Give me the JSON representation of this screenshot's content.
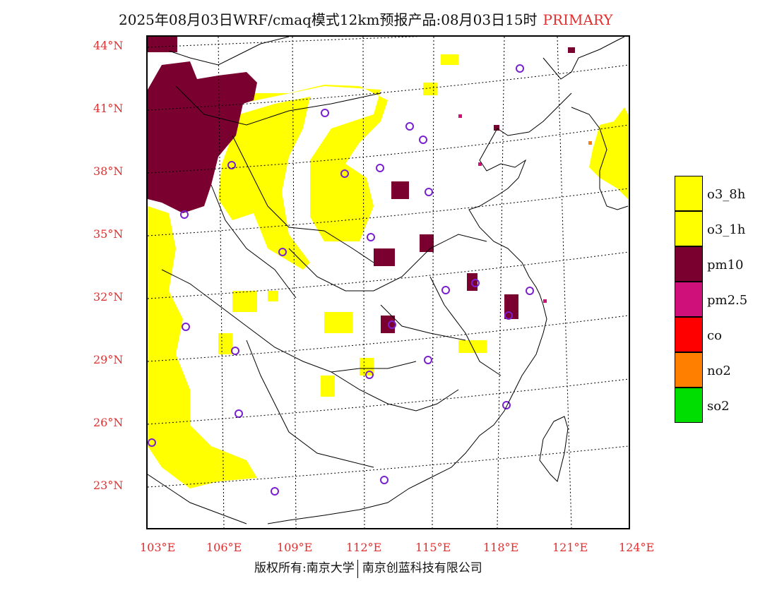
{
  "title": {
    "text": "2025年08月03日WRF/cmaq模式12km预报产品:08月03日15时",
    "tag": "PRIMARY"
  },
  "axes": {
    "lat_labels": [
      "44°N",
      "41°N",
      "38°N",
      "35°N",
      "32°N",
      "29°N",
      "26°N",
      "23°N"
    ],
    "lon_labels": [
      "103°E",
      "106°E",
      "109°E",
      "112°E",
      "115°E",
      "118°E",
      "121°E",
      "124°E"
    ]
  },
  "legend": [
    {
      "label": "o3_8h",
      "color": "#ffff00"
    },
    {
      "label": "o3_1h",
      "color": "#ffff00"
    },
    {
      "label": "pm10",
      "color": "#7a0030"
    },
    {
      "label": "pm2.5",
      "color": "#d0107a"
    },
    {
      "label": "co",
      "color": "#ff0000"
    },
    {
      "label": "no2",
      "color": "#ff8000"
    },
    {
      "label": "so2",
      "color": "#00dd00"
    }
  ],
  "footer": {
    "left": "版权所有:南京大学",
    "right": "南京创蓝科技有限公司"
  },
  "colors": {
    "ozone": "#ffff00",
    "pm10": "#7a0030",
    "pm25": "#d0107a",
    "no2": "#ff8000",
    "station_circle": "#7a20d0",
    "grid": "#000000",
    "label_red": "#e03030"
  }
}
